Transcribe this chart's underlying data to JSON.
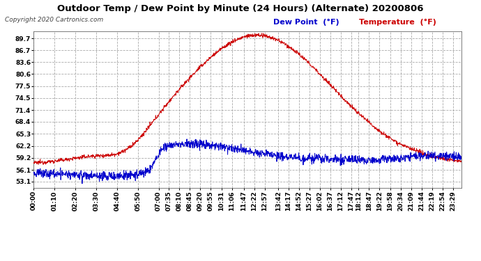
{
  "title": "Outdoor Temp / Dew Point by Minute (24 Hours) (Alternate) 20200806",
  "copyright": "Copyright 2020 Cartronics.com",
  "legend_dew": "Dew Point  (°F)",
  "legend_temp": "Temperature  (°F)",
  "temp_color": "#cc0000",
  "dew_color": "#0000cc",
  "yticks": [
    53.1,
    56.1,
    59.2,
    62.2,
    65.3,
    68.4,
    71.4,
    74.5,
    77.5,
    80.6,
    83.6,
    86.7,
    89.7
  ],
  "ymin": 51.5,
  "ymax": 91.5,
  "background_color": "#ffffff",
  "grid_color": "#aaaaaa",
  "title_fontsize": 9.5,
  "tick_fontsize": 6.5,
  "total_minutes": 1440,
  "tick_times_str": [
    "00:00",
    "01:10",
    "02:20",
    "03:30",
    "04:40",
    "05:50",
    "07:00",
    "07:35",
    "08:10",
    "08:45",
    "09:20",
    "09:55",
    "10:31",
    "11:06",
    "11:47",
    "12:22",
    "12:57",
    "13:42",
    "14:17",
    "14:52",
    "15:27",
    "16:02",
    "16:37",
    "17:12",
    "17:47",
    "18:12",
    "18:47",
    "19:22",
    "19:58",
    "20:34",
    "21:09",
    "21:44",
    "22:19",
    "22:54",
    "23:29"
  ]
}
